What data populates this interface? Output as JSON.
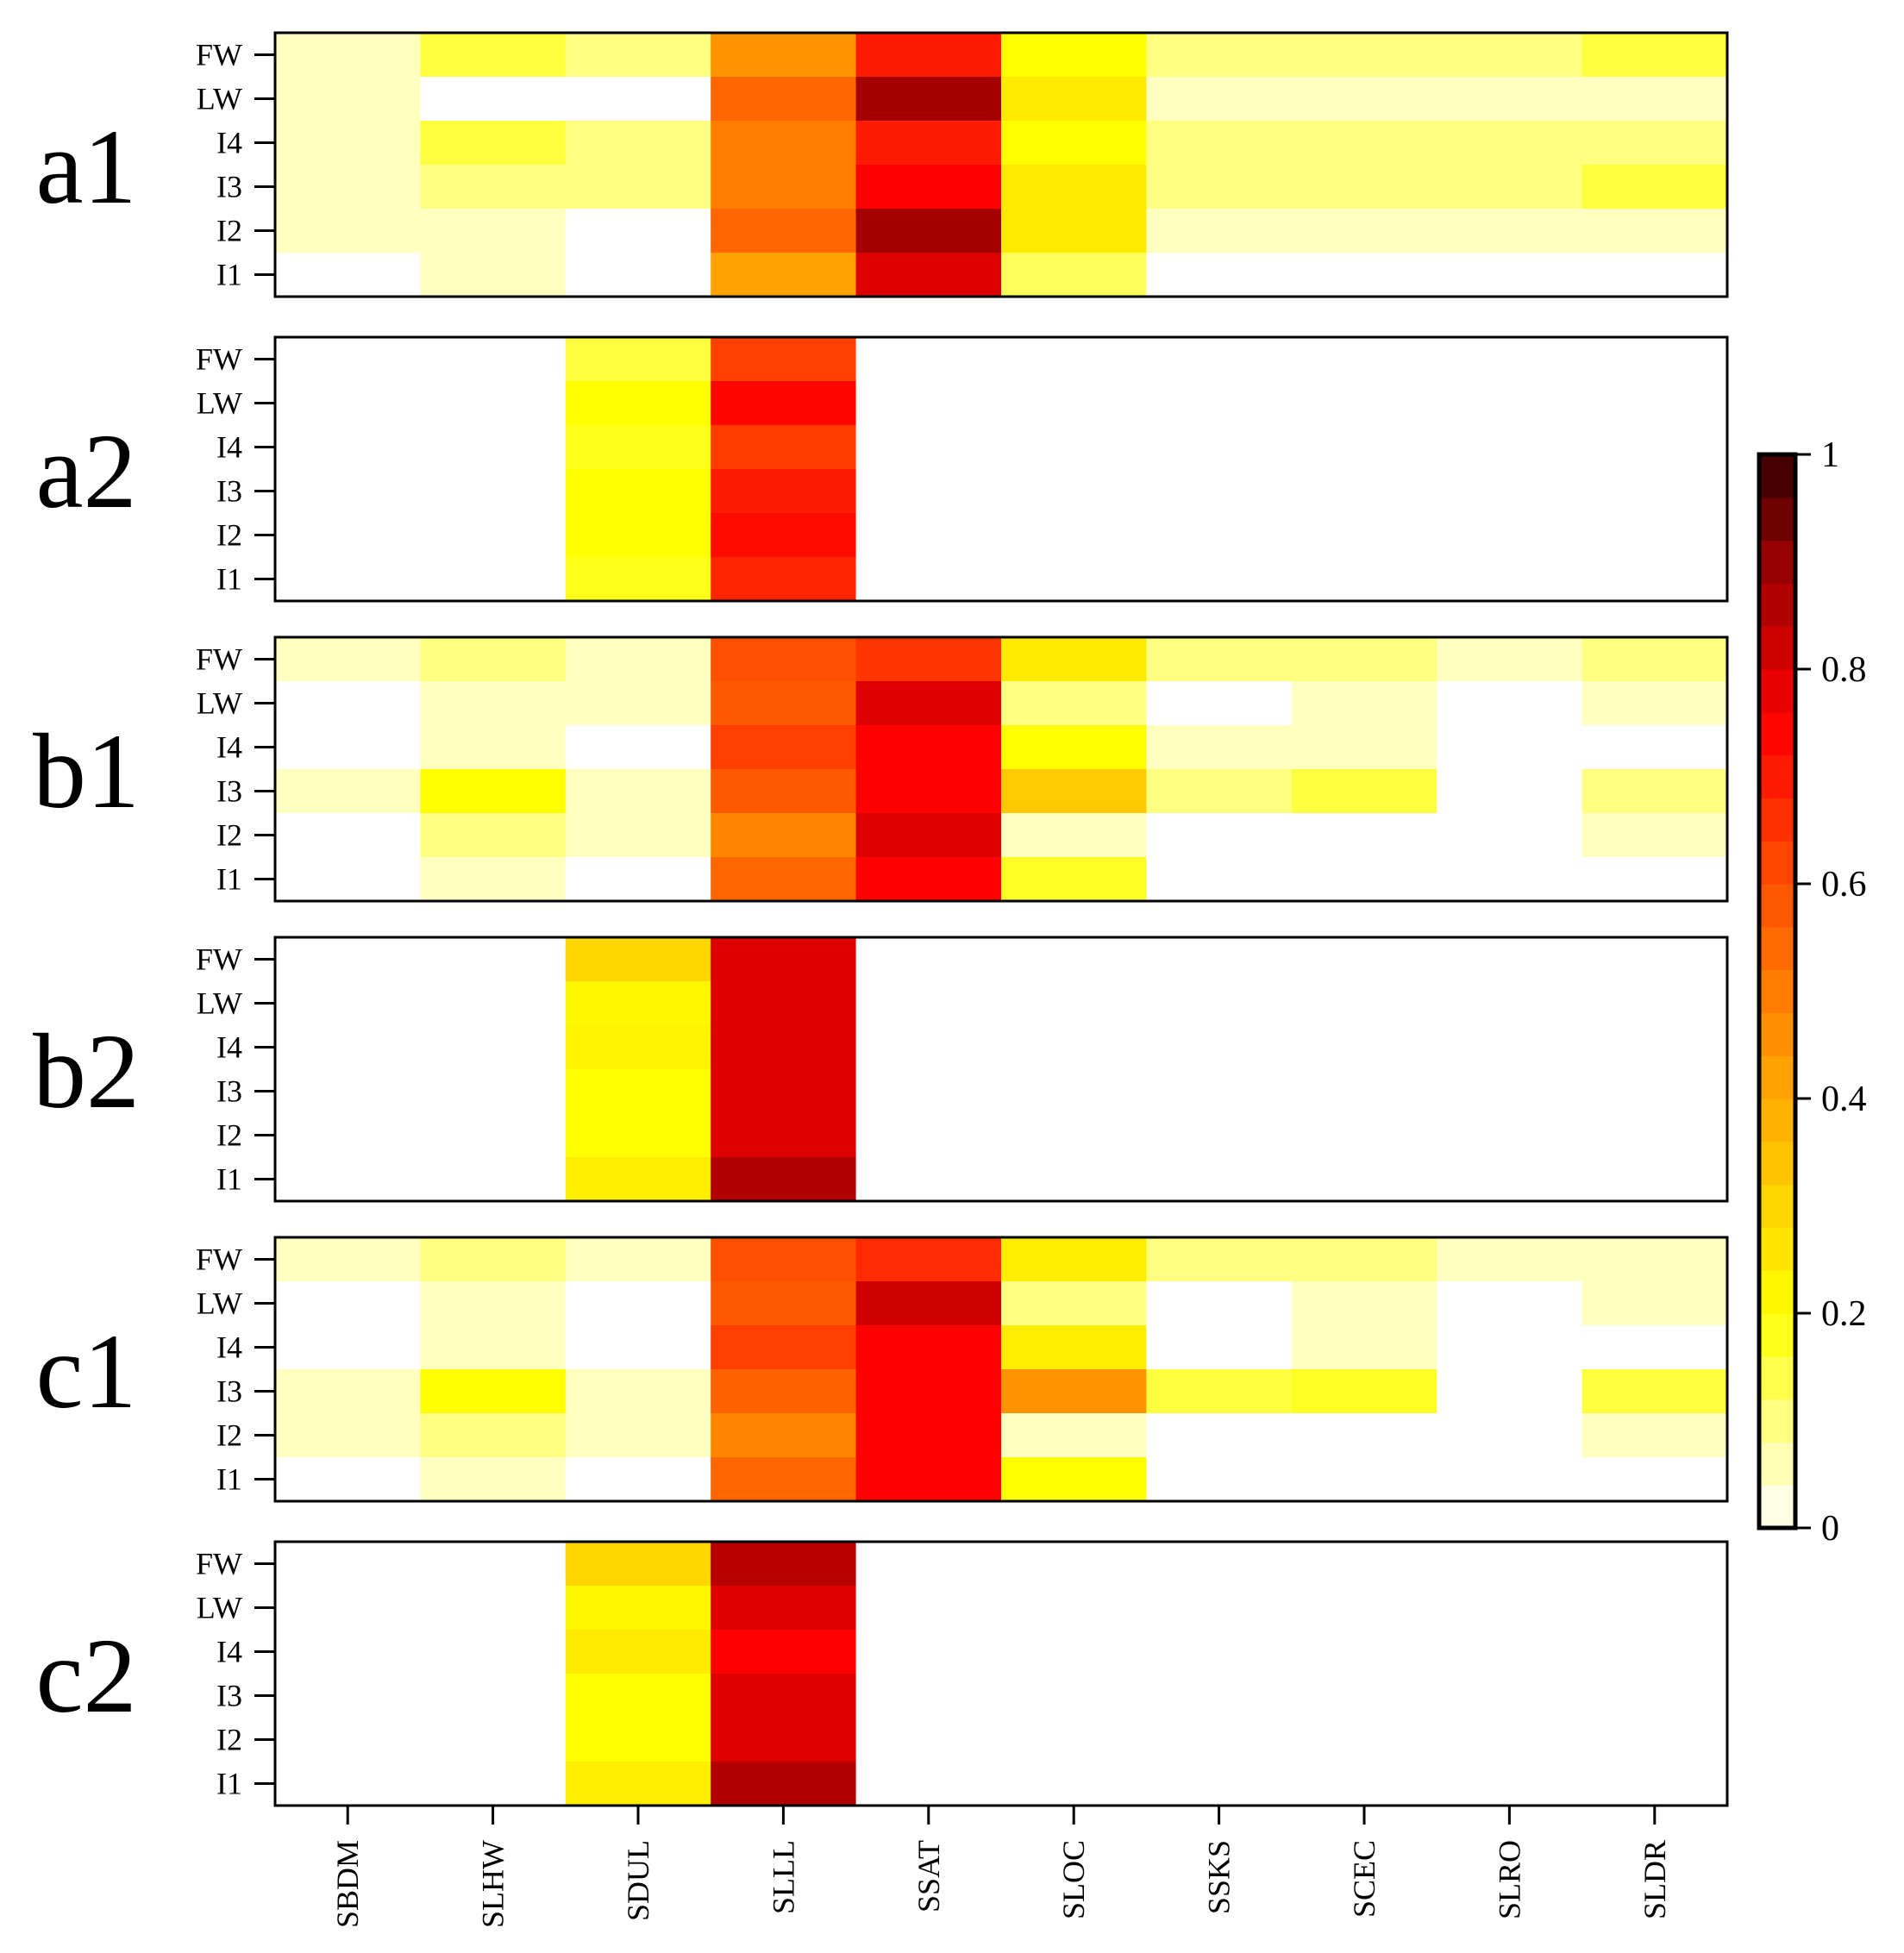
{
  "chart_data": {
    "type": "heatmap",
    "colorscale": {
      "min": 0,
      "max": 1,
      "colormap": "white-yellow-orange-red-darkred",
      "ticks": [
        0,
        0.2,
        0.4,
        0.6,
        0.8,
        1
      ],
      "tick_labels": [
        "0",
        "0.2",
        "0.4",
        "0.6",
        "0.8",
        "1"
      ]
    },
    "columns": [
      "SBDM",
      "SLHW",
      "SDUL",
      "SLLL",
      "SSAT",
      "SLOC",
      "SSKS",
      "SCEC",
      "SLRO",
      "SLDR"
    ],
    "rows": [
      "FW",
      "LW",
      "I4",
      "I3",
      "I2",
      "I1"
    ],
    "panels": [
      {
        "label": "a1",
        "values": [
          [
            0.05,
            0.15,
            0.1,
            0.45,
            0.7,
            0.2,
            0.1,
            0.1,
            0.1,
            0.15
          ],
          [
            0.05,
            0.0,
            0.0,
            0.55,
            0.88,
            0.25,
            0.05,
            0.05,
            0.05,
            0.05
          ],
          [
            0.05,
            0.15,
            0.1,
            0.5,
            0.7,
            0.2,
            0.1,
            0.1,
            0.1,
            0.1
          ],
          [
            0.05,
            0.1,
            0.1,
            0.5,
            0.75,
            0.25,
            0.1,
            0.1,
            0.1,
            0.15
          ],
          [
            0.05,
            0.05,
            0.0,
            0.55,
            0.88,
            0.25,
            0.05,
            0.05,
            0.05,
            0.05
          ],
          [
            0.0,
            0.05,
            0.0,
            0.42,
            0.8,
            0.13,
            0.0,
            0.0,
            0.0,
            0.0
          ]
        ]
      },
      {
        "label": "a2",
        "values": [
          [
            0,
            0,
            0.15,
            0.63,
            0,
            0,
            0,
            0,
            0,
            0
          ],
          [
            0,
            0,
            0.2,
            0.74,
            0,
            0,
            0,
            0,
            0,
            0
          ],
          [
            0,
            0,
            0.18,
            0.64,
            0,
            0,
            0,
            0,
            0,
            0
          ],
          [
            0,
            0,
            0.2,
            0.7,
            0,
            0,
            0,
            0,
            0,
            0
          ],
          [
            0,
            0,
            0.2,
            0.73,
            0,
            0,
            0,
            0,
            0,
            0
          ],
          [
            0,
            0,
            0.18,
            0.68,
            0,
            0,
            0,
            0,
            0,
            0
          ]
        ]
      },
      {
        "label": "b1",
        "values": [
          [
            0.05,
            0.1,
            0.05,
            0.6,
            0.65,
            0.25,
            0.1,
            0.1,
            0.05,
            0.1
          ],
          [
            0.0,
            0.05,
            0.05,
            0.58,
            0.8,
            0.1,
            0.0,
            0.05,
            0.0,
            0.05
          ],
          [
            0.0,
            0.05,
            0.0,
            0.63,
            0.75,
            0.2,
            0.05,
            0.05,
            0.0,
            0.0
          ],
          [
            0.05,
            0.2,
            0.05,
            0.58,
            0.75,
            0.33,
            0.1,
            0.15,
            0.0,
            0.1
          ],
          [
            0.0,
            0.1,
            0.05,
            0.48,
            0.8,
            0.05,
            0.0,
            0.0,
            0.0,
            0.05
          ],
          [
            0.0,
            0.05,
            0.0,
            0.55,
            0.75,
            0.17,
            0.0,
            0.0,
            0.0,
            0.0
          ]
        ]
      },
      {
        "label": "b2",
        "values": [
          [
            0,
            0,
            0.3,
            0.8,
            0,
            0,
            0,
            0,
            0,
            0
          ],
          [
            0,
            0,
            0.22,
            0.8,
            0,
            0,
            0,
            0,
            0,
            0
          ],
          [
            0,
            0,
            0.23,
            0.8,
            0,
            0,
            0,
            0,
            0,
            0
          ],
          [
            0,
            0,
            0.2,
            0.8,
            0,
            0,
            0,
            0,
            0,
            0
          ],
          [
            0,
            0,
            0.2,
            0.8,
            0,
            0,
            0,
            0,
            0,
            0
          ],
          [
            0,
            0,
            0.24,
            0.86,
            0,
            0,
            0,
            0,
            0,
            0
          ]
        ]
      },
      {
        "label": "c1",
        "values": [
          [
            0.05,
            0.1,
            0.05,
            0.6,
            0.67,
            0.24,
            0.1,
            0.1,
            0.05,
            0.05
          ],
          [
            0.0,
            0.05,
            0.0,
            0.58,
            0.82,
            0.1,
            0.0,
            0.05,
            0.0,
            0.05
          ],
          [
            0.0,
            0.05,
            0.0,
            0.63,
            0.75,
            0.24,
            0.0,
            0.05,
            0.0,
            0.0
          ],
          [
            0.05,
            0.2,
            0.05,
            0.56,
            0.75,
            0.45,
            0.15,
            0.17,
            0.0,
            0.15
          ],
          [
            0.05,
            0.1,
            0.05,
            0.48,
            0.75,
            0.05,
            0.0,
            0.0,
            0.0,
            0.05
          ],
          [
            0.0,
            0.05,
            0.0,
            0.55,
            0.75,
            0.2,
            0.0,
            0.0,
            0.0,
            0.0
          ]
        ]
      },
      {
        "label": "c2",
        "values": [
          [
            0,
            0,
            0.3,
            0.85,
            0,
            0,
            0,
            0,
            0,
            0
          ],
          [
            0,
            0,
            0.22,
            0.8,
            0,
            0,
            0,
            0,
            0,
            0
          ],
          [
            0,
            0,
            0.25,
            0.75,
            0,
            0,
            0,
            0,
            0,
            0
          ],
          [
            0,
            0,
            0.2,
            0.8,
            0,
            0,
            0,
            0,
            0,
            0
          ],
          [
            0,
            0,
            0.2,
            0.8,
            0,
            0,
            0,
            0,
            0,
            0
          ],
          [
            0,
            0,
            0.24,
            0.86,
            0,
            0,
            0,
            0,
            0,
            0
          ]
        ]
      }
    ]
  }
}
